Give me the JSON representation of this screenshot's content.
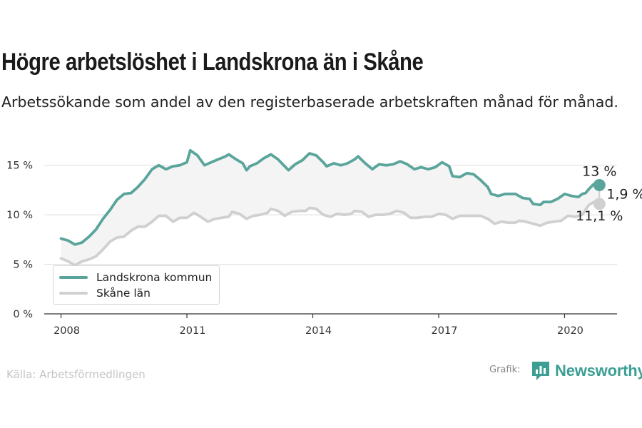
{
  "title": "Högre arbetslöshet i Landskrona än i Skåne",
  "subtitle": "Arbetssökande som andel av den registerbaserade arbetskraften månad för månad.",
  "source": "Källa: Arbetsförmedlingen",
  "credit_label": "Grafik:",
  "brand": "Newsworthy",
  "chart_data": {
    "type": "line",
    "x_unit": "year",
    "xlim": [
      2007.6,
      2021.25
    ],
    "ylim": [
      0,
      18
    ],
    "x_ticks": [
      2008,
      2011,
      2014,
      2017,
      2020
    ],
    "x_tick_labels": [
      "2008",
      "2011",
      "2014",
      "2017",
      "2020"
    ],
    "y_ticks": [
      0,
      5,
      10,
      15
    ],
    "y_tick_labels": [
      "0 %",
      "5 %",
      "10 %",
      "15 %"
    ],
    "grid": "horizontal",
    "legend_position": "bottom-left",
    "band_between_series": true,
    "series": [
      {
        "name": "Landskrona kommun",
        "color": "#5aa59b",
        "end_label": "13 %",
        "points": [
          [
            2008.0,
            7.6
          ],
          [
            2008.17,
            7.4
          ],
          [
            2008.33,
            7.0
          ],
          [
            2008.5,
            7.2
          ],
          [
            2008.67,
            7.8
          ],
          [
            2008.83,
            8.5
          ],
          [
            2009.0,
            9.6
          ],
          [
            2009.17,
            10.5
          ],
          [
            2009.33,
            11.5
          ],
          [
            2009.5,
            12.1
          ],
          [
            2009.67,
            12.2
          ],
          [
            2009.83,
            12.8
          ],
          [
            2010.0,
            13.6
          ],
          [
            2010.17,
            14.6
          ],
          [
            2010.33,
            15.0
          ],
          [
            2010.5,
            14.6
          ],
          [
            2010.67,
            14.9
          ],
          [
            2010.83,
            15.0
          ],
          [
            2011.0,
            15.3
          ],
          [
            2011.08,
            16.5
          ],
          [
            2011.25,
            16.0
          ],
          [
            2011.42,
            15.0
          ],
          [
            2011.58,
            15.3
          ],
          [
            2011.75,
            15.6
          ],
          [
            2011.92,
            15.9
          ],
          [
            2012.0,
            16.1
          ],
          [
            2012.17,
            15.6
          ],
          [
            2012.33,
            15.2
          ],
          [
            2012.42,
            14.5
          ],
          [
            2012.5,
            14.9
          ],
          [
            2012.67,
            15.2
          ],
          [
            2012.83,
            15.7
          ],
          [
            2013.0,
            16.1
          ],
          [
            2013.17,
            15.6
          ],
          [
            2013.33,
            14.9
          ],
          [
            2013.42,
            14.5
          ],
          [
            2013.58,
            15.1
          ],
          [
            2013.75,
            15.5
          ],
          [
            2013.92,
            16.2
          ],
          [
            2014.08,
            16.0
          ],
          [
            2014.25,
            15.3
          ],
          [
            2014.33,
            14.9
          ],
          [
            2014.5,
            15.2
          ],
          [
            2014.67,
            15.0
          ],
          [
            2014.83,
            15.2
          ],
          [
            2015.0,
            15.6
          ],
          [
            2015.08,
            15.9
          ],
          [
            2015.25,
            15.2
          ],
          [
            2015.42,
            14.6
          ],
          [
            2015.58,
            15.1
          ],
          [
            2015.75,
            15.0
          ],
          [
            2015.92,
            15.1
          ],
          [
            2016.08,
            15.4
          ],
          [
            2016.25,
            15.1
          ],
          [
            2016.42,
            14.6
          ],
          [
            2016.58,
            14.8
          ],
          [
            2016.75,
            14.6
          ],
          [
            2016.92,
            14.8
          ],
          [
            2017.08,
            15.3
          ],
          [
            2017.25,
            14.9
          ],
          [
            2017.33,
            13.9
          ],
          [
            2017.5,
            13.8
          ],
          [
            2017.67,
            14.2
          ],
          [
            2017.83,
            14.1
          ],
          [
            2018.0,
            13.5
          ],
          [
            2018.17,
            12.8
          ],
          [
            2018.25,
            12.1
          ],
          [
            2018.42,
            11.9
          ],
          [
            2018.58,
            12.1
          ],
          [
            2018.83,
            12.1
          ],
          [
            2019.0,
            11.7
          ],
          [
            2019.17,
            11.6
          ],
          [
            2019.25,
            11.1
          ],
          [
            2019.42,
            11.0
          ],
          [
            2019.5,
            11.3
          ],
          [
            2019.67,
            11.3
          ],
          [
            2019.83,
            11.6
          ],
          [
            2020.0,
            12.1
          ],
          [
            2020.17,
            11.9
          ],
          [
            2020.33,
            11.8
          ],
          [
            2020.42,
            12.1
          ],
          [
            2020.5,
            12.2
          ],
          [
            2020.58,
            12.6
          ],
          [
            2020.67,
            13.0
          ],
          [
            2020.75,
            13.2
          ],
          [
            2020.83,
            13.0
          ]
        ]
      },
      {
        "name": "Skåne län",
        "color": "#d0d0d0",
        "end_label": "11,1 %",
        "points": [
          [
            2008.0,
            5.6
          ],
          [
            2008.17,
            5.3
          ],
          [
            2008.33,
            4.9
          ],
          [
            2008.5,
            5.3
          ],
          [
            2008.67,
            5.5
          ],
          [
            2008.83,
            5.8
          ],
          [
            2009.0,
            6.5
          ],
          [
            2009.17,
            7.3
          ],
          [
            2009.33,
            7.7
          ],
          [
            2009.5,
            7.8
          ],
          [
            2009.67,
            8.4
          ],
          [
            2009.83,
            8.8
          ],
          [
            2010.0,
            8.8
          ],
          [
            2010.17,
            9.3
          ],
          [
            2010.33,
            9.9
          ],
          [
            2010.5,
            9.9
          ],
          [
            2010.67,
            9.3
          ],
          [
            2010.83,
            9.7
          ],
          [
            2011.0,
            9.7
          ],
          [
            2011.17,
            10.2
          ],
          [
            2011.33,
            9.8
          ],
          [
            2011.5,
            9.3
          ],
          [
            2011.67,
            9.6
          ],
          [
            2011.83,
            9.7
          ],
          [
            2012.0,
            9.8
          ],
          [
            2012.08,
            10.3
          ],
          [
            2012.25,
            10.1
          ],
          [
            2012.42,
            9.6
          ],
          [
            2012.58,
            9.9
          ],
          [
            2012.75,
            10.0
          ],
          [
            2012.92,
            10.2
          ],
          [
            2013.0,
            10.6
          ],
          [
            2013.17,
            10.4
          ],
          [
            2013.33,
            9.9
          ],
          [
            2013.5,
            10.3
          ],
          [
            2013.67,
            10.4
          ],
          [
            2013.83,
            10.4
          ],
          [
            2013.92,
            10.7
          ],
          [
            2014.08,
            10.6
          ],
          [
            2014.25,
            10.0
          ],
          [
            2014.42,
            9.8
          ],
          [
            2014.58,
            10.1
          ],
          [
            2014.75,
            10.0
          ],
          [
            2014.92,
            10.1
          ],
          [
            2015.0,
            10.4
          ],
          [
            2015.17,
            10.3
          ],
          [
            2015.33,
            9.8
          ],
          [
            2015.5,
            10.0
          ],
          [
            2015.67,
            10.0
          ],
          [
            2015.83,
            10.1
          ],
          [
            2016.0,
            10.4
          ],
          [
            2016.17,
            10.2
          ],
          [
            2016.33,
            9.7
          ],
          [
            2016.5,
            9.7
          ],
          [
            2016.67,
            9.8
          ],
          [
            2016.83,
            9.8
          ],
          [
            2017.0,
            10.1
          ],
          [
            2017.17,
            10.0
          ],
          [
            2017.33,
            9.6
          ],
          [
            2017.5,
            9.9
          ],
          [
            2017.67,
            9.9
          ],
          [
            2017.83,
            9.9
          ],
          [
            2018.0,
            9.9
          ],
          [
            2018.17,
            9.6
          ],
          [
            2018.33,
            9.1
          ],
          [
            2018.5,
            9.3
          ],
          [
            2018.67,
            9.2
          ],
          [
            2018.83,
            9.2
          ],
          [
            2018.92,
            9.4
          ],
          [
            2019.08,
            9.3
          ],
          [
            2019.25,
            9.1
          ],
          [
            2019.42,
            8.9
          ],
          [
            2019.58,
            9.2
          ],
          [
            2019.75,
            9.3
          ],
          [
            2019.92,
            9.4
          ],
          [
            2020.08,
            9.9
          ],
          [
            2020.25,
            9.8
          ],
          [
            2020.42,
            10.0
          ],
          [
            2020.58,
            11.0
          ],
          [
            2020.75,
            11.4
          ],
          [
            2020.83,
            11.1
          ]
        ]
      }
    ],
    "difference_label": "1,9 %"
  }
}
